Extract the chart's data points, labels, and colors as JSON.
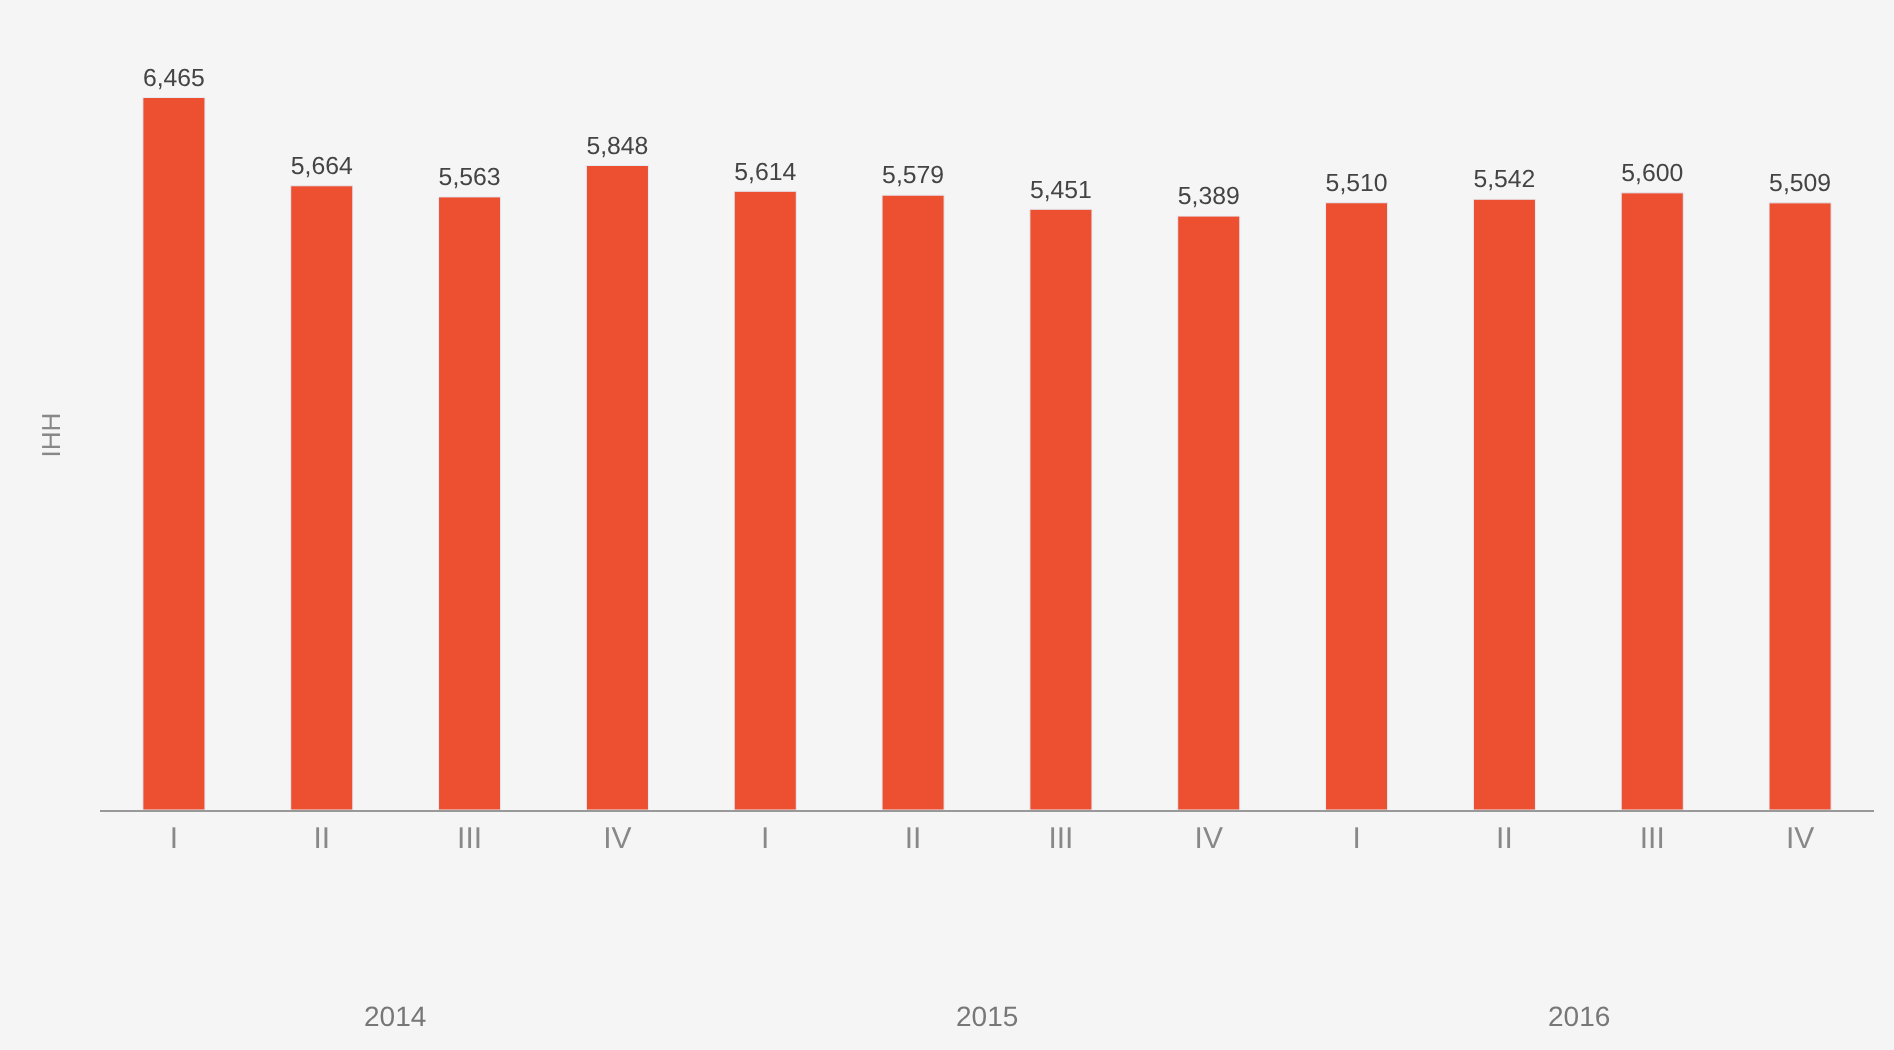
{
  "chart_data": {
    "type": "bar",
    "ylabel": "IHH",
    "categories": [
      "I",
      "II",
      "III",
      "IV",
      "I",
      "II",
      "III",
      "IV",
      "I",
      "II",
      "III",
      "IV"
    ],
    "values": [
      6465,
      5664,
      5563,
      5848,
      5614,
      5579,
      5451,
      5389,
      5510,
      5542,
      5600,
      5509
    ],
    "value_labels": [
      "6,465",
      "5,664",
      "5,563",
      "5,848",
      "5,614",
      "5,579",
      "5,451",
      "5,389",
      "5,510",
      "5,542",
      "5,600",
      "5,509"
    ],
    "color": "#ec5030",
    "grid": false,
    "legend": false,
    "annotations": [
      "2014",
      "2015",
      "2016"
    ]
  }
}
